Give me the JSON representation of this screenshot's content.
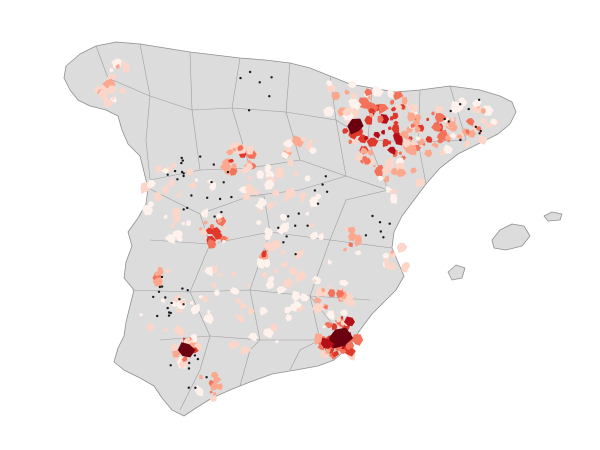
{
  "map": {
    "colors": {
      "land": "#dcdcdc",
      "border": "#8f8f8f",
      "province_border": "#9d9d9d",
      "scale": [
        "#fff1ec",
        "#fcd6c8",
        "#fba88e",
        "#f4715a",
        "#e0392b",
        "#b51019",
        "#6b0010"
      ],
      "dot": "#1a1a1a"
    }
  }
}
